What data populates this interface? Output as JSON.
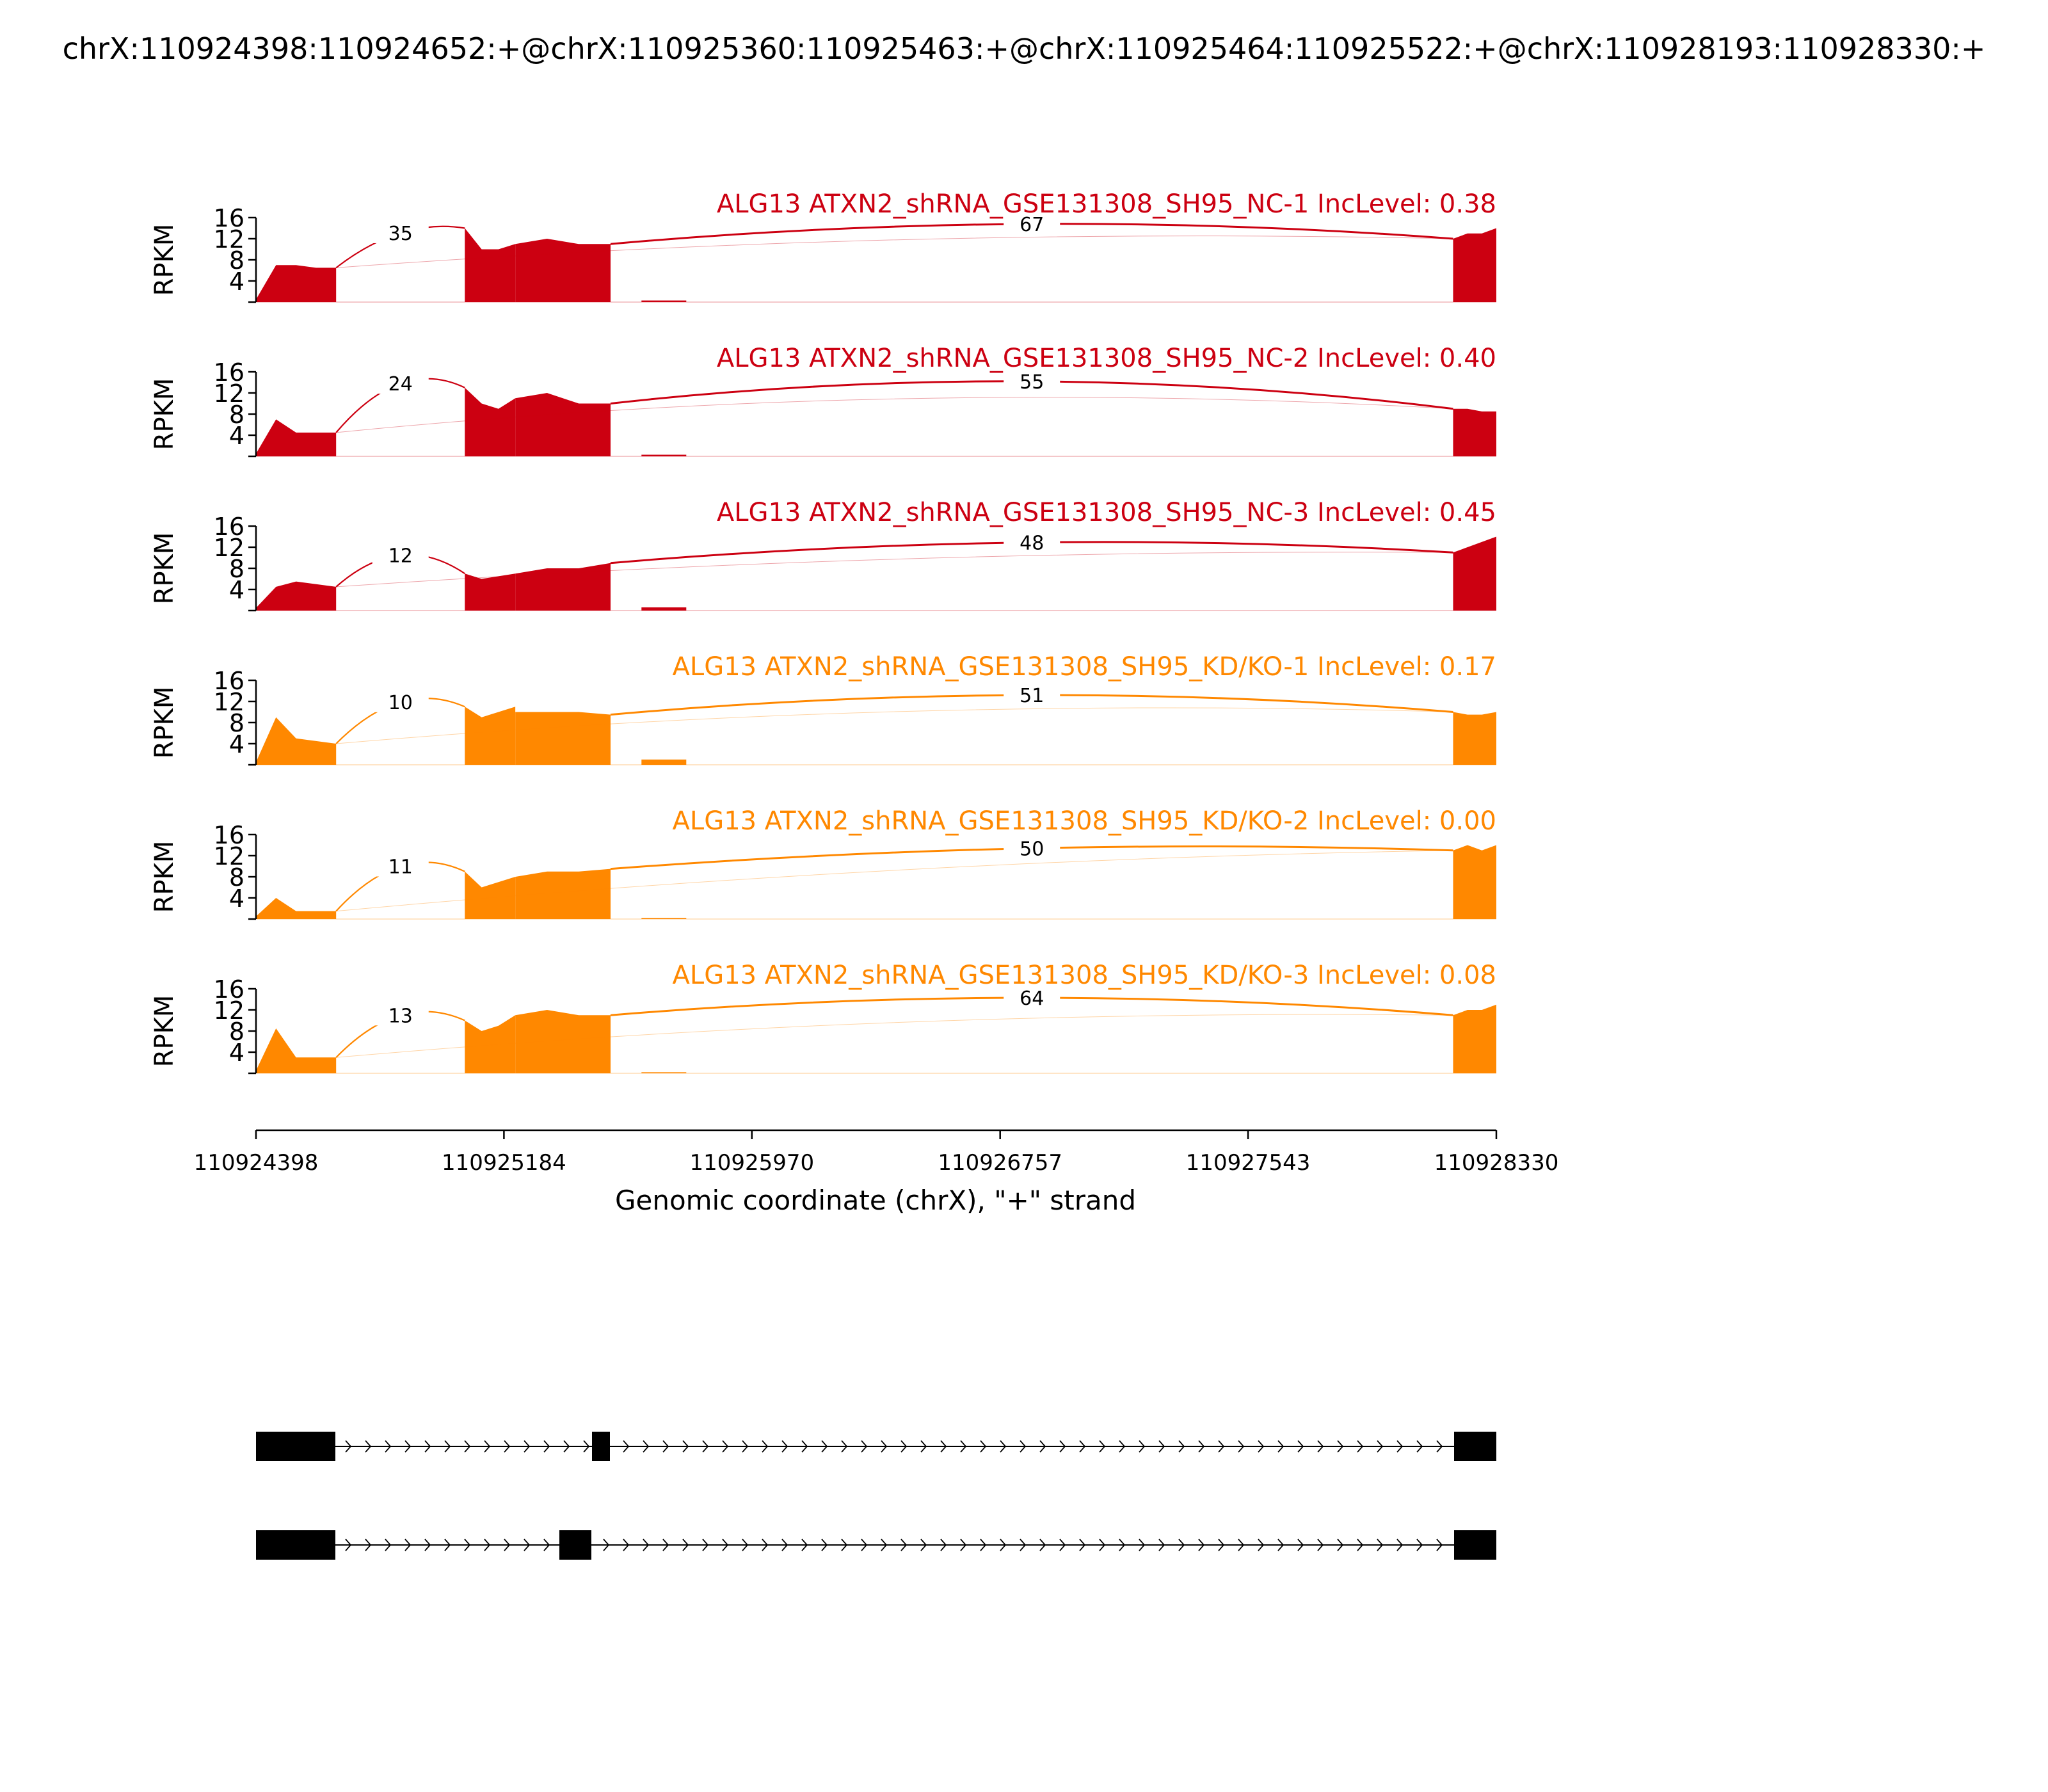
{
  "title": "chrX:110924398:110924652:+@chrX:110925360:110925463:+@chrX:110925464:110925522:+@chrX:110928193:110928330:+",
  "colors": {
    "nc": "#cc0011",
    "kd": "#ff8800",
    "axis": "#000000"
  },
  "chart_data": {
    "type": "area",
    "subtype": "sashimi",
    "ylabel": "RPKM",
    "ylim": [
      0,
      16
    ],
    "yticks": [
      4,
      8,
      12,
      16
    ],
    "xlabel": "Genomic coordinate (chrX), \"+\" strand",
    "xlim": [
      110924398,
      110928330
    ],
    "xticks": [
      110924398,
      110925184,
      110925970,
      110926757,
      110927543,
      110928330
    ],
    "tick_labels": [
      "110924398",
      "110925184",
      "110925970",
      "110926757",
      "110927543",
      "110928330"
    ],
    "exons": {
      "e1": [
        110924398,
        110924652
      ],
      "e2": [
        110925360,
        110925463
      ],
      "e3": [
        110925464,
        110925522
      ],
      "e4": [
        110928193,
        110928330
      ]
    },
    "samples": [
      {
        "group": "nc",
        "label": "ALG13 ATXN2_shRNA_GSE131308_SH95_NC-1 IncLevel: 0.38",
        "e1": [
          0.5,
          7,
          7,
          6.5,
          6.5
        ],
        "e2": 0.3,
        "e3a": [
          14,
          10,
          10,
          11
        ],
        "e3b": [
          11,
          12,
          11,
          11
        ],
        "e4": [
          12,
          13,
          13,
          14
        ],
        "junctions": [
          {
            "label": "35",
            "peak": 13.1
          },
          {
            "label": "67",
            "peak": 14.8
          }
        ]
      },
      {
        "group": "nc",
        "label": "ALG13 ATXN2_shRNA_GSE131308_SH95_NC-2 IncLevel: 0.40",
        "e1": [
          0.5,
          7,
          4.5,
          4.5,
          4.5
        ],
        "e2": 0.3,
        "e3a": [
          13,
          10,
          9,
          11
        ],
        "e3b": [
          11,
          12,
          10,
          10
        ],
        "e4": [
          9,
          9,
          8.5,
          8.5
        ],
        "junctions": [
          {
            "label": "24",
            "peak": 13.8
          },
          {
            "label": "55",
            "peak": 14.2
          }
        ]
      },
      {
        "group": "nc",
        "label": "ALG13 ATXN2_shRNA_GSE131308_SH95_NC-3 IncLevel: 0.45",
        "e1": [
          0.5,
          4.5,
          5.5,
          5,
          4.5
        ],
        "e2": 0.6,
        "e3a": [
          7,
          6,
          6.5,
          7
        ],
        "e3b": [
          7,
          8,
          8,
          9
        ],
        "e4": [
          11,
          12,
          13,
          14
        ],
        "junctions": [
          {
            "label": "12",
            "peak": 10.5
          },
          {
            "label": "48",
            "peak": 12.9
          }
        ]
      },
      {
        "group": "kd",
        "label": "ALG13 ATXN2_shRNA_GSE131308_SH95_KD/KO-1 IncLevel: 0.17",
        "e1": [
          0.5,
          9,
          5,
          4.5,
          4
        ],
        "e2": 1,
        "e3a": [
          11,
          9,
          10,
          11
        ],
        "e3b": [
          10,
          10,
          10,
          9.5
        ],
        "e4": [
          10,
          9.5,
          9.5,
          10
        ],
        "junctions": [
          {
            "label": "10",
            "peak": 11.9
          },
          {
            "label": "51",
            "peak": 13.2
          }
        ]
      },
      {
        "group": "kd",
        "label": "ALG13 ATXN2_shRNA_GSE131308_SH95_KD/KO-2 IncLevel: 0.00",
        "e1": [
          0.5,
          4,
          1.5,
          1.5,
          1.5
        ],
        "e2": 0.2,
        "e3a": [
          9,
          6,
          7,
          8
        ],
        "e3b": [
          8,
          9,
          9,
          9.5
        ],
        "e4": [
          13,
          14,
          13,
          14
        ],
        "junctions": [
          {
            "label": "11",
            "peak": 10
          },
          {
            "label": "50",
            "peak": 13.4
          }
        ]
      },
      {
        "group": "kd",
        "label": "ALG13 ATXN2_shRNA_GSE131308_SH95_KD/KO-3 IncLevel: 0.08",
        "e1": [
          0.5,
          8.5,
          3,
          3,
          3
        ],
        "e2": 0.2,
        "e3a": [
          10,
          8,
          9,
          11
        ],
        "e3b": [
          11,
          12,
          11,
          11
        ],
        "e4": [
          11,
          12,
          12,
          13
        ],
        "junctions": [
          {
            "label": "13",
            "peak": 11
          },
          {
            "label": "64",
            "peak": 14.3
          }
        ]
      }
    ],
    "isoforms": [
      [
        "e1",
        "e3",
        "e4"
      ],
      [
        "e1",
        "e2",
        "e4"
      ]
    ]
  }
}
